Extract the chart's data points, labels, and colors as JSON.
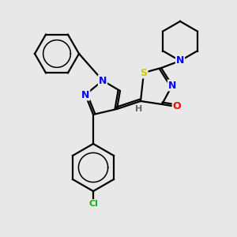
{
  "background_color": "#e8e8e8",
  "line_color": "#000000",
  "atom_colors": {
    "N": "#0000ff",
    "O": "#ff0000",
    "S": "#cccc00",
    "Cl": "#00bb00",
    "C": "#000000",
    "H": "#666666"
  },
  "figsize": [
    3.0,
    3.0
  ],
  "dpi": 100,
  "bond_lw": 1.6,
  "font_size": 9
}
